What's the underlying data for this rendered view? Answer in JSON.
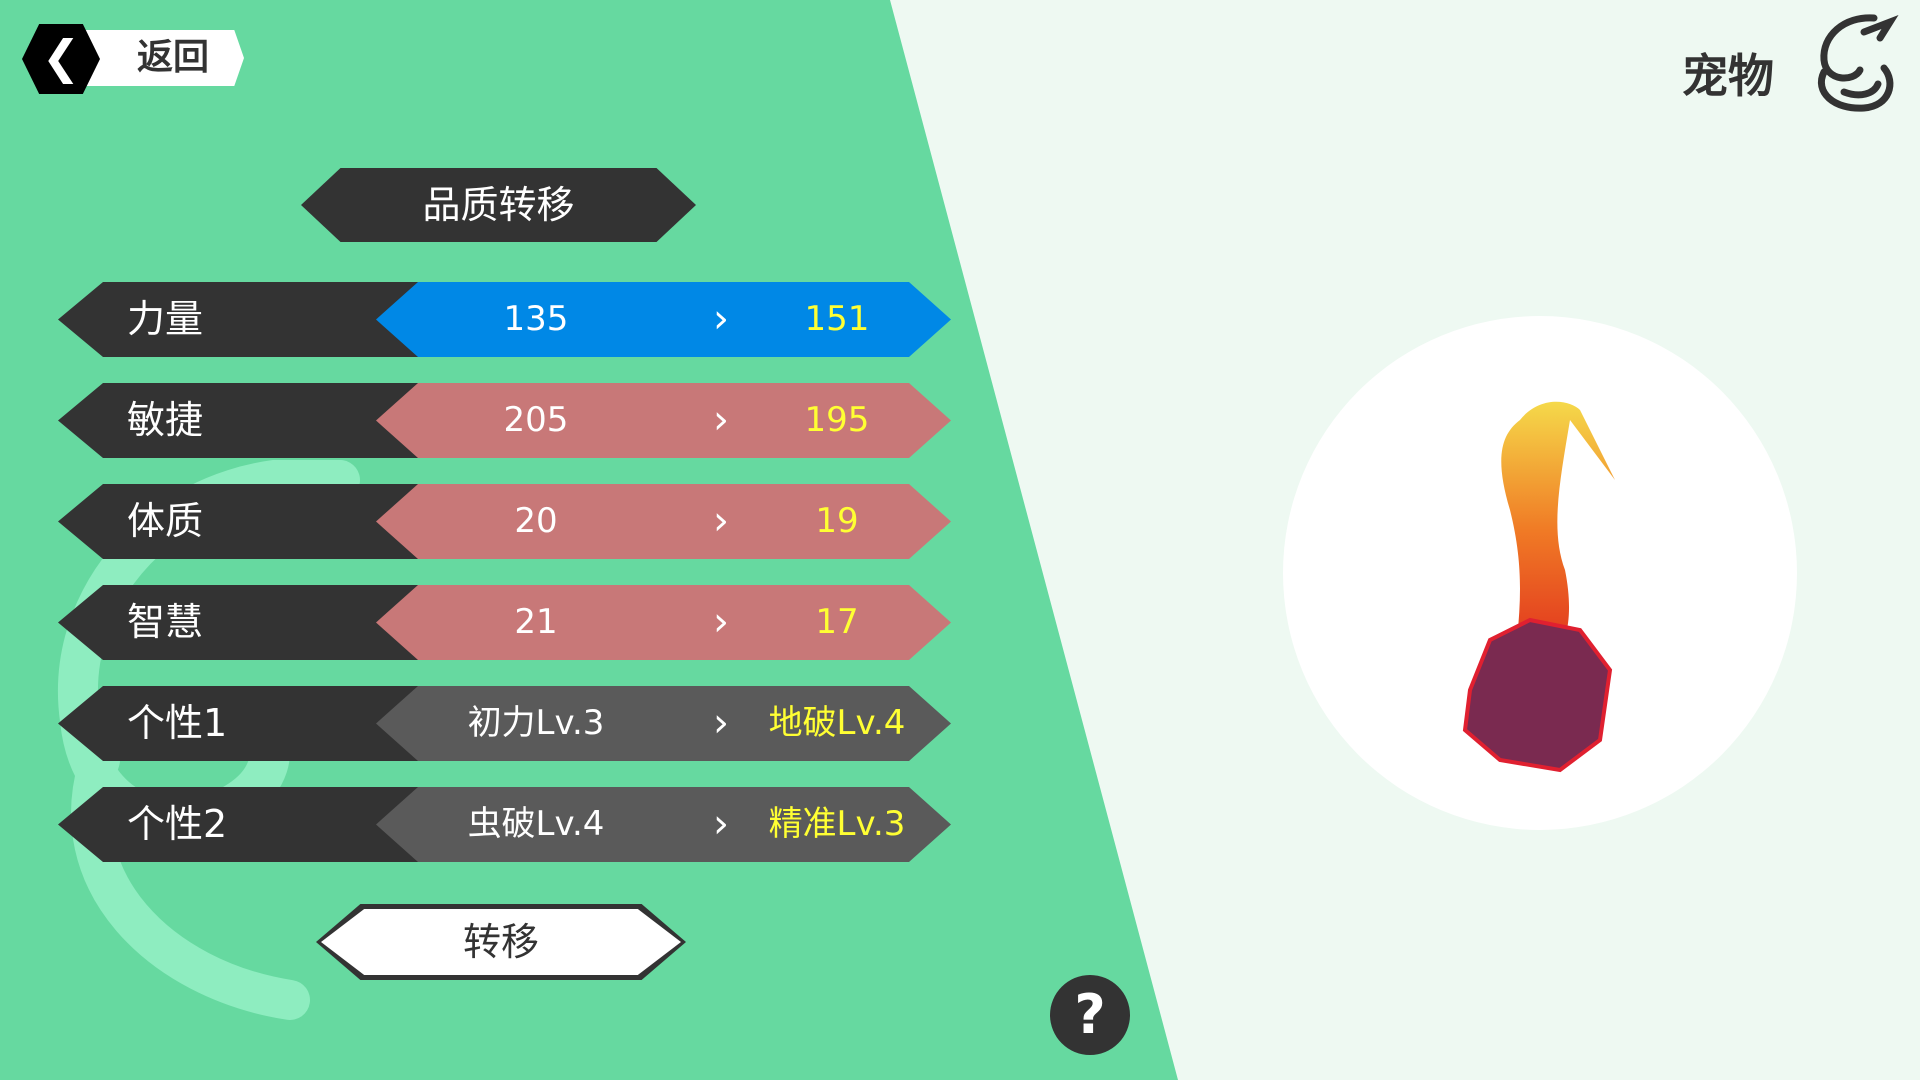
{
  "header": {
    "back_label": "返回",
    "back_icon": "chevron-left-icon",
    "section_title": "宠物",
    "section_icon": "dragon-icon"
  },
  "panel": {
    "title": "品质转移",
    "transfer_label": "转移",
    "help_label": "?"
  },
  "colors": {
    "background": "#66d9a0",
    "increase": "#0088e6",
    "decrease": "#c87878",
    "neutral": "#5a5a5a",
    "new_value": "#ffff33"
  },
  "stats": [
    {
      "label": "力量",
      "old": "135",
      "new": "151",
      "arrow": "›",
      "trend": "increase"
    },
    {
      "label": "敏捷",
      "old": "205",
      "new": "195",
      "arrow": "›",
      "trend": "decrease"
    },
    {
      "label": "体质",
      "old": "20",
      "new": "19",
      "arrow": "›",
      "trend": "decrease"
    },
    {
      "label": "智慧",
      "old": "21",
      "new": "17",
      "arrow": "›",
      "trend": "decrease"
    },
    {
      "label": "个性1",
      "old": "初力Lv.3",
      "new": "地破Lv.4",
      "arrow": "›",
      "trend": "neutral"
    },
    {
      "label": "个性2",
      "old": "虫破Lv.4",
      "new": "精准Lv.3",
      "arrow": "›",
      "trend": "neutral"
    }
  ]
}
